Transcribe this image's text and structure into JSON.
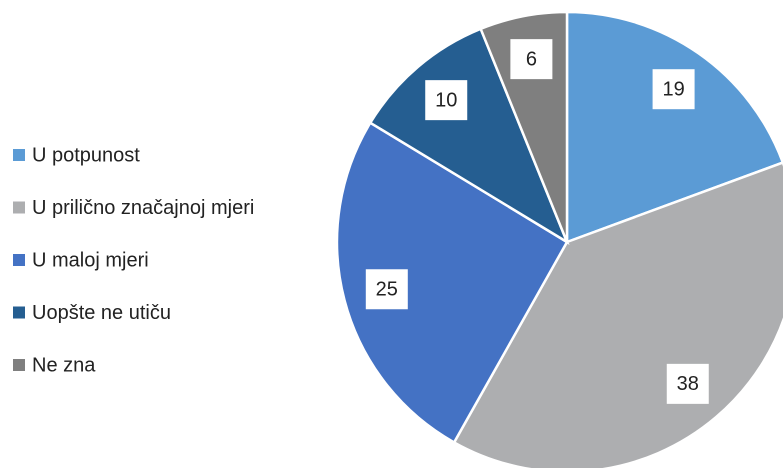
{
  "chart_data": {
    "type": "pie",
    "categories": [
      "U potpunost",
      "U prilično značajnoj mjeri",
      "U maloj mjeri",
      "Uopšte ne utiču",
      "Ne zna"
    ],
    "values": [
      19,
      38,
      25,
      10,
      6
    ],
    "colors": [
      "#5b9bd5",
      "#adaeb0",
      "#4472c4",
      "#255e91",
      "#7f7f7f"
    ],
    "legend": "left"
  }
}
